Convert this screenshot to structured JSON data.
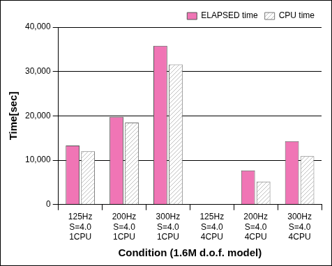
{
  "chart_data": {
    "type": "bar",
    "x_label": "Condition (1.6M d.o.f. model)",
    "y_label": "Time[sec]",
    "categories": [
      [
        "125Hz",
        "S=4.0",
        "1CPU"
      ],
      [
        "200Hz",
        "S=4.0",
        "1CPU"
      ],
      [
        "300Hz",
        "S=4.0",
        "1CPU"
      ],
      [
        "125Hz",
        "S=4.0",
        "4CPU"
      ],
      [
        "200Hz",
        "S=4.0",
        "4CPU"
      ],
      [
        "300Hz",
        "S=4.0",
        "4CPU"
      ]
    ],
    "series": [
      {
        "name": "ELAPSED time",
        "color": "#f075b5",
        "values": [
          13300,
          19800,
          35800,
          null,
          7700,
          14300
        ]
      },
      {
        "name": "CPU time",
        "color": "#bfbfbf",
        "values": [
          12000,
          18500,
          31600,
          null,
          5200,
          10900
        ]
      }
    ],
    "ylim": [
      0,
      40000
    ],
    "yticks": [
      0,
      10000,
      20000,
      30000,
      40000
    ],
    "grid": true,
    "legend": "upper right"
  }
}
